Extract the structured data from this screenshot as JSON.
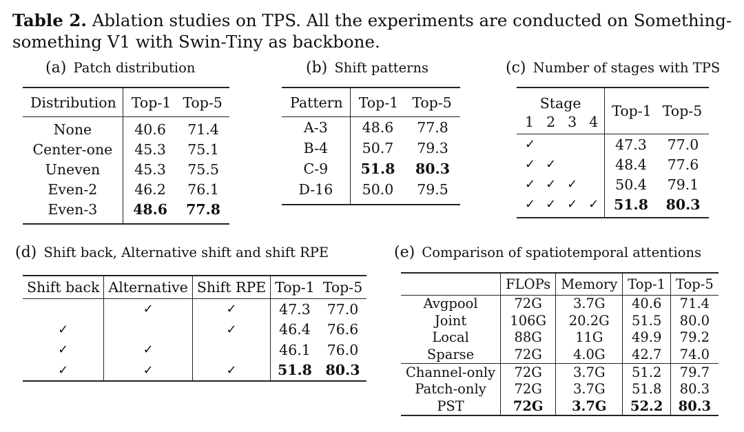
{
  "caption": {
    "label": "Table 2.",
    "text": "Ablation studies on TPS. All the experiments are conducted on Something-something V1 with Swin-Tiny as backbone."
  },
  "table_a": {
    "label": "(a)",
    "title": "Patch distribution",
    "headers": [
      "Distribution",
      "Top-1",
      "Top-5"
    ],
    "rows": [
      {
        "name": "None",
        "top1": "40.6",
        "top5": "71.4"
      },
      {
        "name": "Center-one",
        "top1": "45.3",
        "top5": "75.1"
      },
      {
        "name": "Uneven",
        "top1": "45.3",
        "top5": "75.5"
      },
      {
        "name": "Even-2",
        "top1": "46.2",
        "top5": "76.1"
      },
      {
        "name": "Even-3",
        "top1": "48.6",
        "top5": "77.8"
      }
    ]
  },
  "table_b": {
    "label": "(b)",
    "title": "Shift patterns",
    "headers": [
      "Pattern",
      "Top-1",
      "Top-5"
    ],
    "rows": [
      {
        "name": "A-3",
        "top1": "48.6",
        "top5": "77.8"
      },
      {
        "name": "B-4",
        "top1": "50.7",
        "top5": "79.3"
      },
      {
        "name": "C-9",
        "top1": "51.8",
        "top5": "80.3"
      },
      {
        "name": "D-16",
        "top1": "50.0",
        "top5": "79.5"
      }
    ]
  },
  "table_c": {
    "label": "(c)",
    "title": "Number of stages with TPS",
    "stage_header": "Stage",
    "stage_numbers": [
      "1",
      "2",
      "3",
      "4"
    ],
    "headers": [
      "Top-1",
      "Top-5"
    ],
    "check": "✓",
    "rows": [
      {
        "top1": "47.3",
        "top5": "77.0"
      },
      {
        "top1": "48.4",
        "top5": "77.6"
      },
      {
        "top1": "50.4",
        "top5": "79.1"
      },
      {
        "top1": "51.8",
        "top5": "80.3"
      }
    ]
  },
  "table_d": {
    "label": "(d)",
    "title": "Shift back, Alternative shift and shift RPE",
    "headers": [
      "Shift back",
      "Alternative",
      "Shift RPE",
      "Top-1",
      "Top-5"
    ],
    "check": "✓",
    "rows": [
      {
        "top1": "47.3",
        "top5": "77.0"
      },
      {
        "top1": "46.4",
        "top5": "76.6"
      },
      {
        "top1": "46.1",
        "top5": "76.0"
      },
      {
        "top1": "51.8",
        "top5": "80.3"
      }
    ]
  },
  "table_e": {
    "label": "(e)",
    "title": "Comparison of spatiotemporal attentions",
    "headers": [
      "",
      "FLOPs",
      "Memory",
      "Top-1",
      "Top-5"
    ],
    "rows": [
      {
        "name": "Avgpool",
        "flops": "72G",
        "memory": "3.7G",
        "top1": "40.6",
        "top5": "71.4"
      },
      {
        "name": "Joint",
        "flops": "106G",
        "memory": "20.2G",
        "top1": "51.5",
        "top5": "80.0"
      },
      {
        "name": "Local",
        "flops": "88G",
        "memory": "11G",
        "top1": "49.9",
        "top5": "79.2"
      },
      {
        "name": "Sparse",
        "flops": "72G",
        "memory": "4.0G",
        "top1": "42.7",
        "top5": "74.0"
      },
      {
        "name": "Channel-only",
        "flops": "72G",
        "memory": "3.7G",
        "top1": "51.2",
        "top5": "79.7"
      },
      {
        "name": "Patch-only",
        "flops": "72G",
        "memory": "3.7G",
        "top1": "51.8",
        "top5": "80.3"
      },
      {
        "name": "PST",
        "flops": "72G",
        "memory": "3.7G",
        "top1": "52.2",
        "top5": "80.3"
      }
    ]
  }
}
